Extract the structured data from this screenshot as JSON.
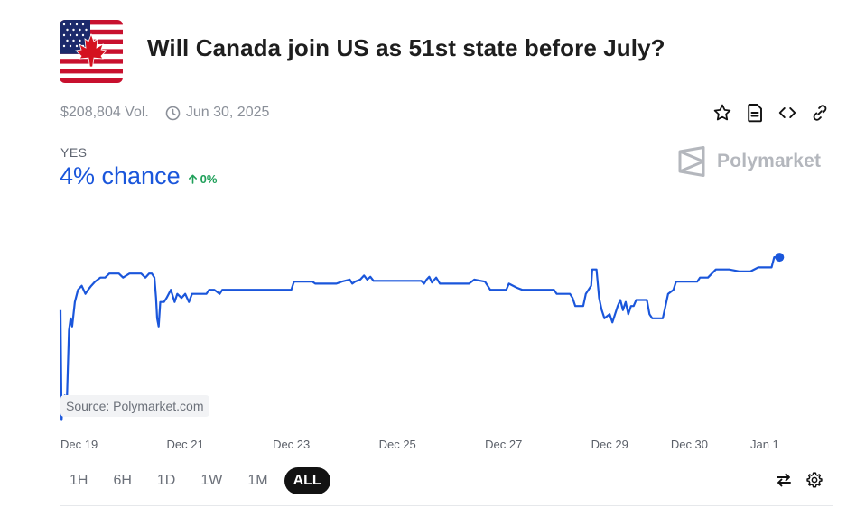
{
  "market": {
    "title": "Will Canada join US as 51st state before July?",
    "volume": "$208,804 Vol.",
    "end_date": "Jun 30, 2025",
    "outcome": "YES",
    "chance": "4% chance",
    "change": "0%",
    "brand": "Polymarket",
    "source": "Source: Polymarket.com"
  },
  "icons": {
    "logo": "us-flag-maple-leaf-logo",
    "date": "clock-icon",
    "actions": [
      "star-icon",
      "document-icon",
      "code-icon",
      "link-icon"
    ],
    "change": "arrow-up-icon",
    "tools": [
      "swap-arrows-icon",
      "gear-icon"
    ]
  },
  "ranges": {
    "items": [
      "1H",
      "6H",
      "1D",
      "1W",
      "1M",
      "ALL"
    ],
    "selected": "ALL"
  },
  "colors": {
    "line": "#1a56db",
    "positive": "#20a05a",
    "muted": "#8a8f98"
  },
  "chart_data": {
    "type": "line",
    "title": "",
    "xlabel": "",
    "ylabel": "",
    "x_unit": "days since start (Dec 19, 00:00)",
    "x_ticks": [
      "Dec 19",
      "Dec 21",
      "Dec 23",
      "Dec 25",
      "Dec 27",
      "Dec 29",
      "Dec 30",
      "Jan 1"
    ],
    "x_tick_positions": [
      0,
      2,
      4,
      6,
      8,
      10,
      11.5,
      13
    ],
    "ylim": [
      0,
      5.5
    ],
    "grid": false,
    "series": [
      {
        "name": "Yes",
        "points": [
          [
            0.0,
            2.8
          ],
          [
            0.02,
            0.1
          ],
          [
            0.05,
            0.6
          ],
          [
            0.08,
            0.7
          ],
          [
            0.12,
            0.6
          ],
          [
            0.16,
            2.3
          ],
          [
            0.19,
            2.6
          ],
          [
            0.22,
            2.4
          ],
          [
            0.27,
            3.0
          ],
          [
            0.33,
            3.3
          ],
          [
            0.4,
            3.4
          ],
          [
            0.47,
            3.2
          ],
          [
            0.52,
            3.3
          ],
          [
            0.58,
            3.4
          ],
          [
            0.65,
            3.5
          ],
          [
            0.75,
            3.6
          ],
          [
            0.84,
            3.6
          ],
          [
            0.92,
            3.7
          ],
          [
            1.1,
            3.7
          ],
          [
            1.18,
            3.6
          ],
          [
            1.3,
            3.7
          ],
          [
            1.42,
            3.7
          ],
          [
            1.52,
            3.7
          ],
          [
            1.6,
            3.6
          ],
          [
            1.67,
            3.7
          ],
          [
            1.72,
            3.7
          ],
          [
            1.77,
            3.6
          ],
          [
            1.8,
            3.1
          ],
          [
            1.82,
            2.6
          ],
          [
            1.85,
            2.4
          ],
          [
            1.88,
            3.0
          ],
          [
            1.95,
            3.0
          ],
          [
            2.0,
            3.1
          ],
          [
            2.08,
            3.3
          ],
          [
            2.15,
            3.0
          ],
          [
            2.2,
            3.2
          ],
          [
            2.28,
            3.1
          ],
          [
            2.35,
            3.2
          ],
          [
            2.42,
            3.0
          ],
          [
            2.48,
            3.2
          ],
          [
            2.75,
            3.2
          ],
          [
            2.8,
            3.3
          ],
          [
            2.9,
            3.3
          ],
          [
            3.0,
            3.2
          ],
          [
            3.05,
            3.3
          ],
          [
            3.3,
            3.3
          ],
          [
            4.2,
            3.3
          ],
          [
            4.3,
            3.3
          ],
          [
            4.35,
            3.3
          ],
          [
            4.4,
            3.5
          ],
          [
            4.75,
            3.5
          ],
          [
            4.8,
            3.45
          ],
          [
            5.2,
            3.45
          ],
          [
            5.3,
            3.5
          ],
          [
            5.45,
            3.55
          ],
          [
            5.5,
            3.45
          ],
          [
            5.55,
            3.5
          ],
          [
            5.65,
            3.55
          ],
          [
            5.72,
            3.65
          ],
          [
            5.78,
            3.55
          ],
          [
            5.84,
            3.62
          ],
          [
            5.9,
            3.52
          ],
          [
            6.05,
            3.52
          ],
          [
            6.5,
            3.52
          ],
          [
            6.8,
            3.52
          ],
          [
            6.85,
            3.45
          ],
          [
            6.9,
            3.55
          ],
          [
            6.95,
            3.62
          ],
          [
            7.0,
            3.48
          ],
          [
            7.08,
            3.6
          ],
          [
            7.15,
            3.45
          ],
          [
            7.7,
            3.45
          ],
          [
            7.8,
            3.55
          ],
          [
            8.0,
            3.5
          ],
          [
            8.1,
            3.3
          ],
          [
            8.4,
            3.3
          ],
          [
            8.45,
            3.45
          ],
          [
            8.6,
            3.35
          ],
          [
            8.7,
            3.3
          ],
          [
            9.3,
            3.3
          ],
          [
            9.35,
            3.2
          ],
          [
            9.6,
            3.2
          ],
          [
            9.65,
            3.1
          ],
          [
            9.7,
            2.9
          ],
          [
            9.85,
            2.9
          ],
          [
            9.9,
            3.2
          ],
          [
            10.0,
            3.4
          ],
          [
            10.02,
            3.8
          ],
          [
            10.1,
            3.8
          ],
          [
            10.15,
            3.1
          ],
          [
            10.2,
            2.8
          ],
          [
            10.25,
            2.6
          ],
          [
            10.35,
            2.7
          ],
          [
            10.4,
            2.5
          ],
          [
            10.5,
            2.9
          ],
          [
            10.55,
            3.05
          ],
          [
            10.6,
            2.8
          ],
          [
            10.65,
            3.0
          ],
          [
            10.7,
            2.7
          ],
          [
            10.75,
            2.9
          ],
          [
            10.8,
            2.9
          ],
          [
            10.85,
            3.05
          ],
          [
            10.95,
            3.05
          ],
          [
            11.05,
            3.05
          ],
          [
            11.1,
            2.7
          ],
          [
            11.15,
            2.6
          ],
          [
            11.35,
            2.6
          ],
          [
            11.4,
            2.9
          ],
          [
            11.45,
            3.2
          ],
          [
            11.55,
            3.3
          ],
          [
            11.6,
            3.5
          ],
          [
            12.0,
            3.5
          ],
          [
            12.05,
            3.6
          ],
          [
            12.2,
            3.6
          ],
          [
            12.35,
            3.8
          ],
          [
            12.6,
            3.8
          ],
          [
            12.8,
            3.75
          ],
          [
            13.0,
            3.75
          ],
          [
            13.15,
            3.85
          ],
          [
            13.4,
            3.85
          ],
          [
            13.45,
            4.1
          ],
          [
            13.55,
            4.1
          ]
        ]
      }
    ],
    "last_point_marker": true
  }
}
